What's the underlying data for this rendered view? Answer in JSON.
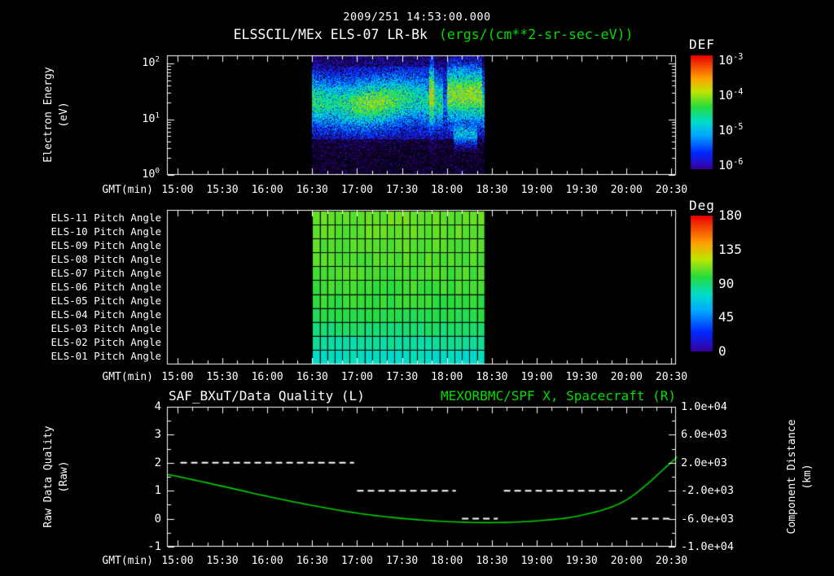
{
  "header": {
    "datetime": "2009/251 14:53:00.000",
    "instrument": "ELSSCIL/MEx ELS-07 LR-Bk",
    "units": "(ergs/(cm**2-sr-sec-eV))"
  },
  "x_axis": {
    "label": "GMT(min)",
    "start": "14:53",
    "end": "20:33",
    "ticks": [
      "15:00",
      "15:30",
      "16:00",
      "16:30",
      "17:00",
      "17:30",
      "18:00",
      "18:30",
      "19:00",
      "19:30",
      "20:00",
      "20:30"
    ]
  },
  "colors": {
    "background": "#000000",
    "text": "#ffffff",
    "accent_green": "#00dd00",
    "curve_green": "#00d000"
  },
  "chart_data": [
    {
      "type": "heatmap",
      "name": "electron-energy-spectrogram",
      "ylabel": "Electron Energy",
      "ylabel_units": "(eV)",
      "y_scale": "log",
      "y_ticks": [
        "10^0",
        "10^1",
        "10^2"
      ],
      "y_log_range": [
        0,
        2.15
      ],
      "colorbar": {
        "label": "DEF",
        "ticks": [
          "10^-3",
          "10^-4",
          "10^-5",
          "10^-6"
        ],
        "log_range": [
          -6.11,
          -2.85
        ]
      },
      "data_window": {
        "start": "16:30",
        "end": "18:25"
      },
      "band": {
        "center_log_ev": 1.32,
        "sigma_log": 0.3,
        "peak_log_flux": -4.35
      },
      "background_log_flux": -6.0,
      "features": [
        {
          "kind": "spike",
          "start": "17:48",
          "end": "17:51",
          "peak_log_flux": -3.7,
          "center_log_ev": 1.42,
          "sigma_log": 0.36
        },
        {
          "kind": "gap",
          "start": "17:57",
          "end": "18:00",
          "peak_log_flux": -5.3
        },
        {
          "kind": "enhancement",
          "start": "18:00",
          "end": "18:23",
          "peak_log_flux": -3.95,
          "center_log_ev": 1.45,
          "sigma_log": 0.34
        },
        {
          "kind": "low_band",
          "start": "18:04",
          "end": "18:20",
          "peak_log_flux": -4.9,
          "center_log_ev": 0.75,
          "sigma_log": 0.15
        }
      ]
    },
    {
      "type": "heatmap",
      "name": "pitch-angle-panels",
      "colorbar": {
        "label": "Deg",
        "ticks": [
          180,
          135,
          90,
          45,
          0
        ],
        "range": [
          0,
          180
        ]
      },
      "data_window": {
        "start": "16:30",
        "end": "18:25"
      },
      "cell_minutes": 5,
      "rows": [
        {
          "label": "ELS-11 Pitch Angle",
          "value_deg": 108
        },
        {
          "label": "ELS-10 Pitch Angle",
          "value_deg": 107
        },
        {
          "label": "ELS-09 Pitch Angle",
          "value_deg": 106
        },
        {
          "label": "ELS-08 Pitch Angle",
          "value_deg": 105
        },
        {
          "label": "ELS-07 Pitch Angle",
          "value_deg": 104
        },
        {
          "label": "ELS-06 Pitch Angle",
          "value_deg": 102
        },
        {
          "label": "ELS-05 Pitch Angle",
          "value_deg": 100
        },
        {
          "label": "ELS-04 Pitch Angle",
          "value_deg": 96
        },
        {
          "label": "ELS-03 Pitch Angle",
          "value_deg": 90
        },
        {
          "label": "ELS-02 Pitch Angle",
          "value_deg": 82
        },
        {
          "label": "ELS-01 Pitch Angle",
          "value_deg": 76
        }
      ]
    },
    {
      "type": "line",
      "name": "data-quality-and-spacecraft-distance",
      "title_left": "SAF_BXuT/Data Quality (L)",
      "title_right": "MEXORBMC/SPF X, Spacecraft (R)",
      "ylabel_left": "Raw Data Quality",
      "ylabel_left_units": "(Raw)",
      "ylabel_right": "Component Distance",
      "ylabel_right_units": "(km)",
      "y_left": {
        "ticks": [
          4,
          3,
          2,
          1,
          0,
          -1
        ],
        "range": [
          -1,
          4
        ]
      },
      "y_right": {
        "ticks": [
          {
            "label": "1.0e+04",
            "value": 10000
          },
          {
            "label": "6.0e+03",
            "value": 6000
          },
          {
            "label": "2.0e+03",
            "value": 2000
          },
          {
            "label": "-2.0e+03",
            "value": -2000
          },
          {
            "label": "-6.0e+03",
            "value": -6000
          },
          {
            "label": "-1.0e+04",
            "value": -10000
          }
        ],
        "range": [
          -10000,
          10000
        ]
      },
      "series": [
        {
          "name": "MEXORBMC/SPF X Spacecraft",
          "axis": "right",
          "color": "#00d000",
          "style": "solid",
          "points": [
            [
              "14:53",
              300
            ],
            [
              "15:00",
              50
            ],
            [
              "15:30",
              -1350
            ],
            [
              "16:00",
              -2800
            ],
            [
              "16:30",
              -4100
            ],
            [
              "17:00",
              -5200
            ],
            [
              "17:30",
              -5950
            ],
            [
              "18:00",
              -6400
            ],
            [
              "18:30",
              -6550
            ],
            [
              "19:00",
              -6300
            ],
            [
              "19:30",
              -5500
            ],
            [
              "20:00",
              -3300
            ],
            [
              "20:30",
              2100
            ],
            [
              "20:33",
              2800
            ]
          ]
        },
        {
          "name": "SAF_BXuT Data Quality",
          "axis": "left",
          "color": "#ffffff",
          "style": "dashed",
          "segments": [
            {
              "level": 2,
              "start": "15:02",
              "end": "16:58"
            },
            {
              "level": 1,
              "start": "17:00",
              "end": "18:06"
            },
            {
              "level": 0,
              "start": "18:10",
              "end": "18:34"
            },
            {
              "level": 1,
              "start": "18:38",
              "end": "19:57"
            },
            {
              "level": 0,
              "start": "20:03",
              "end": "20:30"
            }
          ]
        }
      ]
    }
  ]
}
